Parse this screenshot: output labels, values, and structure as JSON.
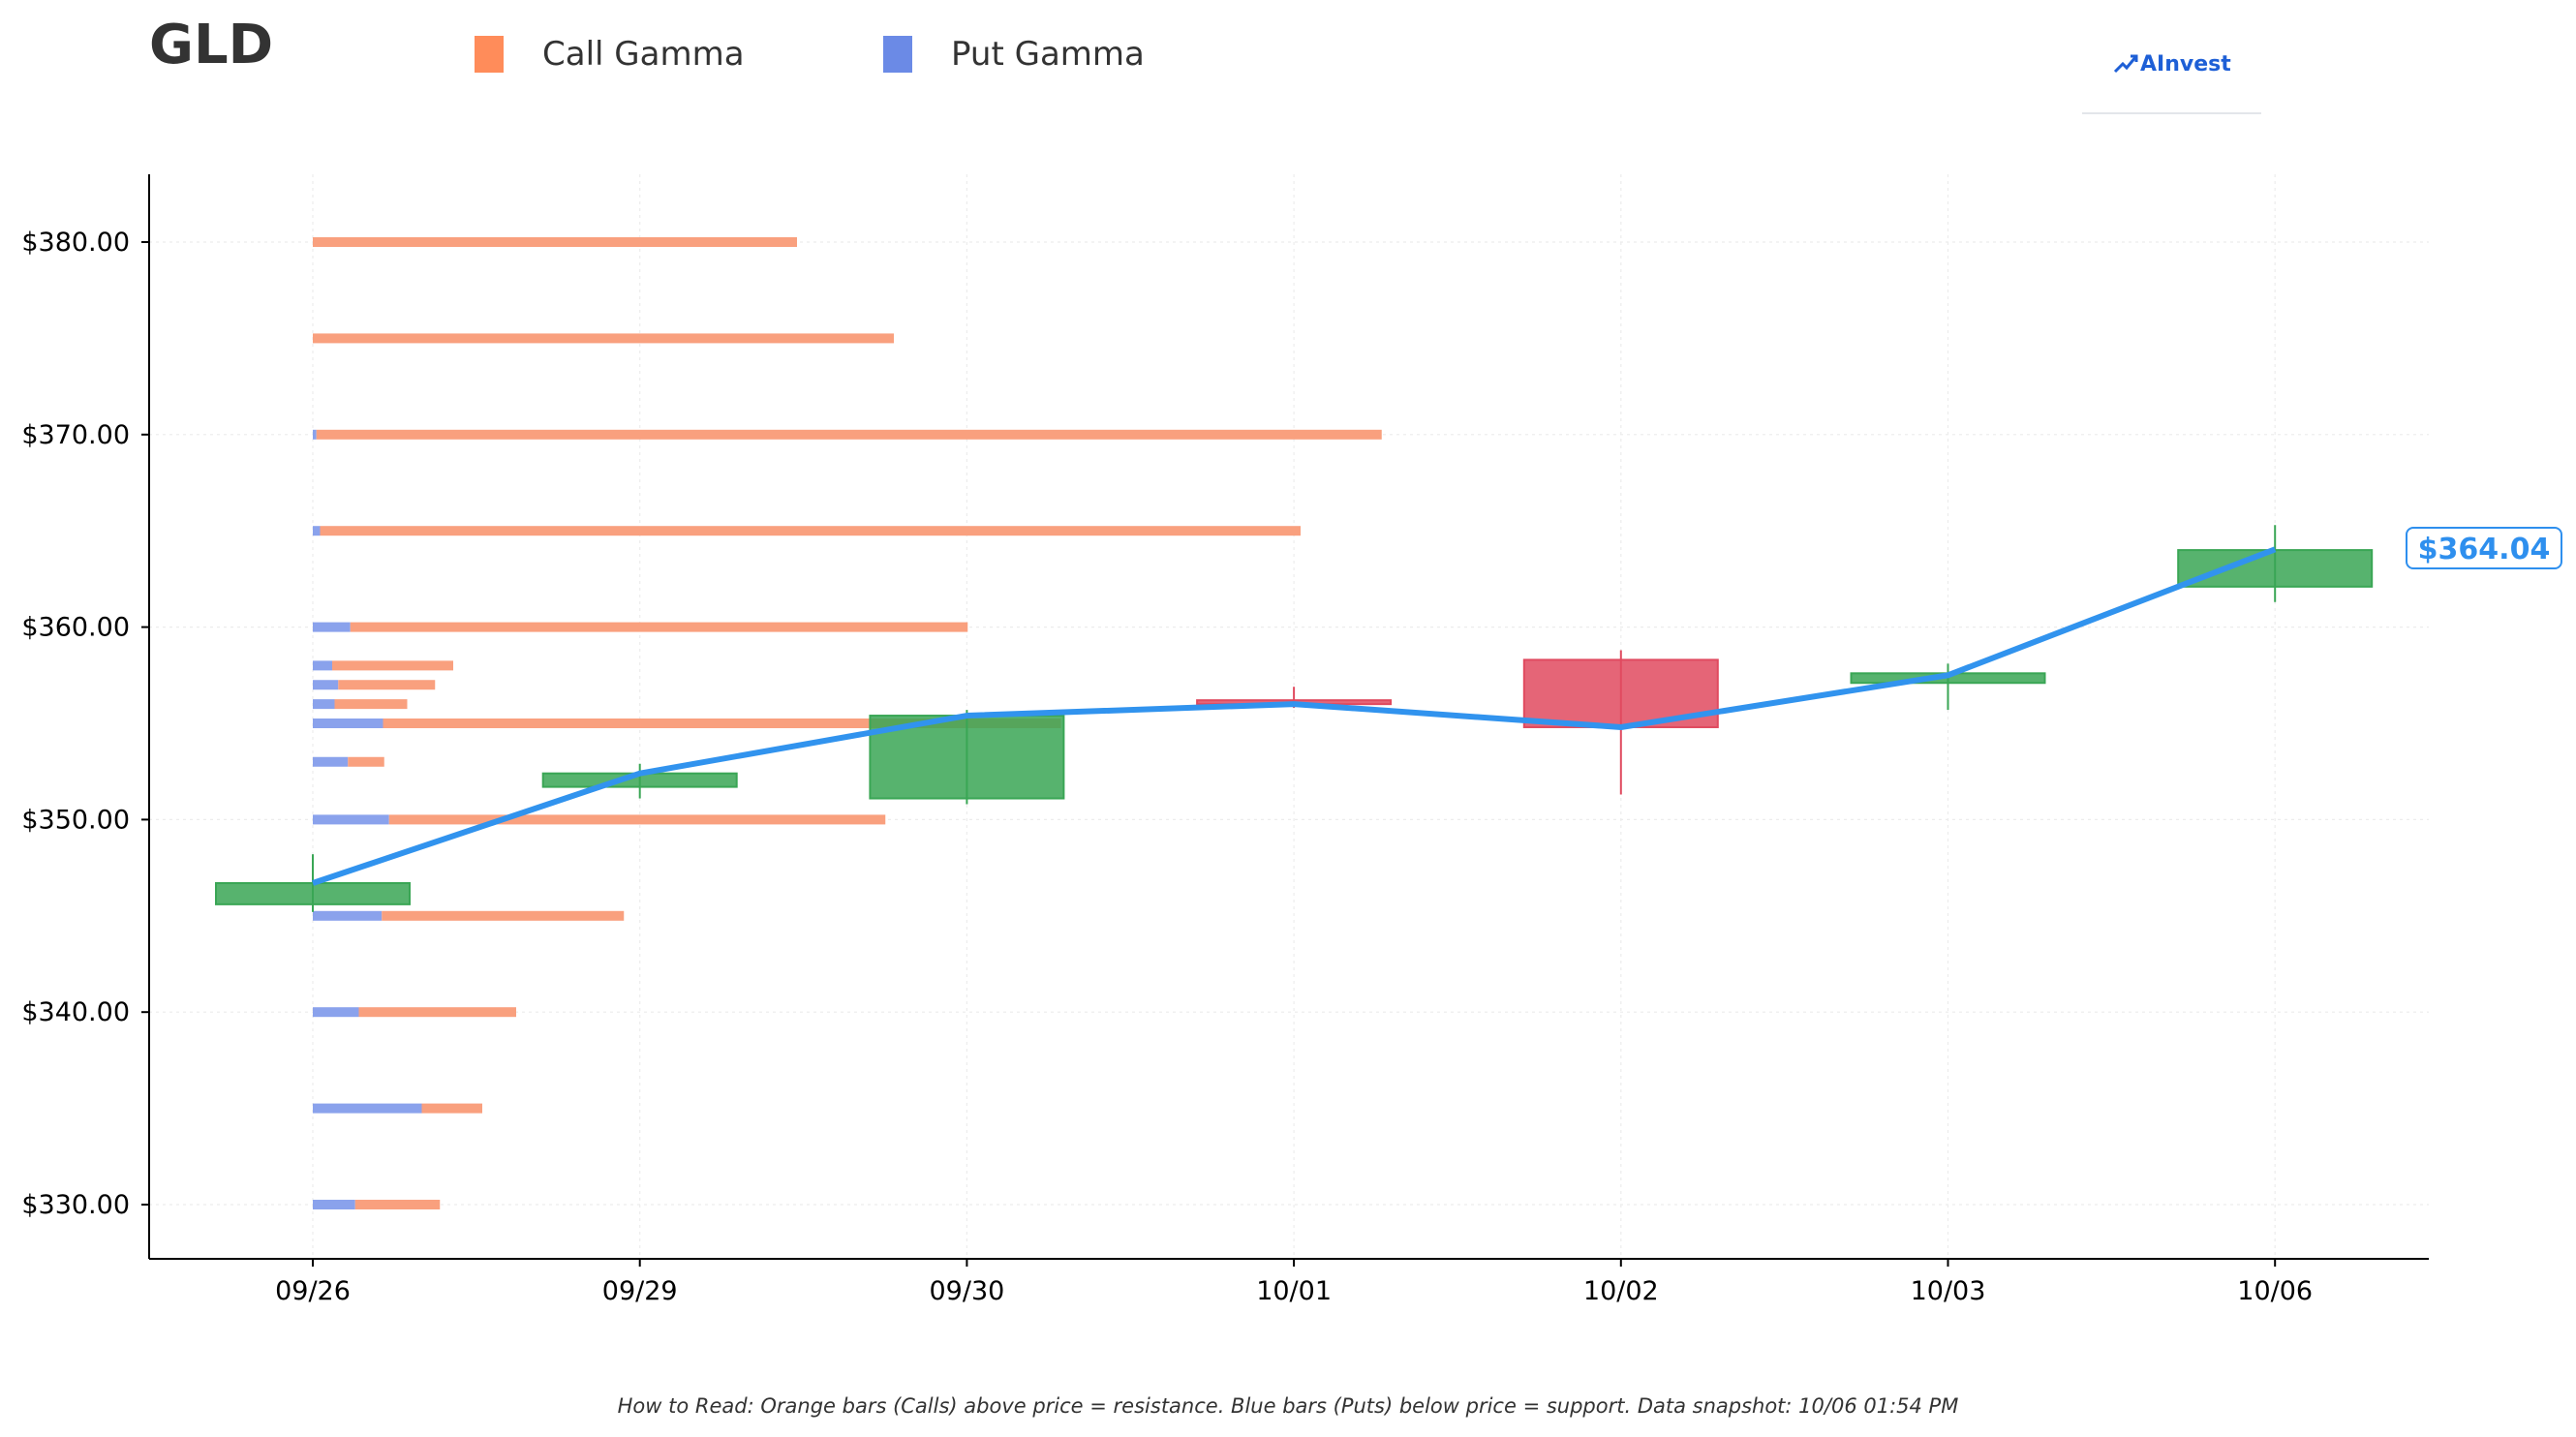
{
  "header": {
    "title": "GLD",
    "legend_call": "Call Gamma",
    "legend_put": "Put Gamma",
    "logo_text": "AInvest",
    "logo_icon": "ainvest-logo-icon"
  },
  "footer": {
    "note": "How to Read: Orange bars (Calls) above price = resistance. Blue bars (Puts) below price = support. Data snapshot: 10/06 01:54 PM"
  },
  "colors": {
    "call": "#f9a07e",
    "call_legend": "#ff8c5a",
    "put": "#8aa2ec",
    "put_legend": "#6b8ae6",
    "up_candle": "#3aa655",
    "down_candle": "#e04a5f",
    "price_line": "#3193ee"
  },
  "chart_data": {
    "type": "candlestick",
    "categories": [
      "09/26",
      "09/29",
      "09/30",
      "10/01",
      "10/02",
      "10/03",
      "10/06"
    ],
    "ylim": [
      327.5,
      383.5
    ],
    "yticks": [
      330,
      340,
      350,
      360,
      370,
      380
    ],
    "ytick_labels": [
      "$330.00",
      "$340.00",
      "$350.00",
      "$360.00",
      "$370.00",
      "$380.00"
    ],
    "grid": true,
    "ohlc": [
      {
        "open": 345.6,
        "high": 348.2,
        "low": 345.2,
        "close": 346.7
      },
      {
        "open": 351.7,
        "high": 352.9,
        "low": 351.1,
        "close": 352.4
      },
      {
        "open": 351.1,
        "high": 355.7,
        "low": 350.8,
        "close": 355.4
      },
      {
        "open": 356.2,
        "high": 356.9,
        "low": 355.8,
        "close": 356.0
      },
      {
        "open": 358.3,
        "high": 358.8,
        "low": 351.3,
        "close": 354.8
      },
      {
        "open": 357.1,
        "high": 358.1,
        "low": 355.7,
        "close": 357.6
      },
      {
        "open": 362.1,
        "high": 365.3,
        "low": 361.3,
        "close": 364.0
      }
    ],
    "close_line": [
      346.7,
      352.4,
      355.4,
      356.0,
      354.8,
      357.5,
      364.04
    ],
    "gamma_strikes": [
      330,
      335,
      340,
      345,
      350,
      353,
      355,
      356,
      357,
      358,
      360,
      365,
      370,
      375,
      380
    ],
    "call_gamma": [
      0.07,
      0.05,
      0.13,
      0.2,
      0.41,
      0.03,
      0.56,
      0.06,
      0.08,
      0.1,
      0.51,
      0.81,
      0.88,
      0.48,
      0.4
    ],
    "put_gamma": [
      0.035,
      0.09,
      0.038,
      0.057,
      0.063,
      0.029,
      0.058,
      0.018,
      0.021,
      0.016,
      0.031,
      0.006,
      0.003,
      0.0,
      0.0
    ],
    "last_price_label": "$364.04"
  }
}
